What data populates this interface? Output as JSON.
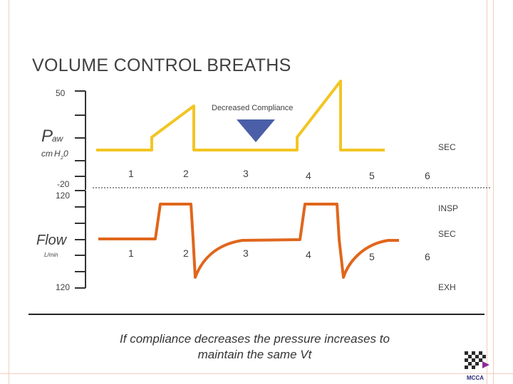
{
  "title": "VOLUME CONTROL BREATHS",
  "annotation": "Decreased Compliance",
  "pressure_panel": {
    "label_main": "P",
    "label_sub": "aw",
    "unit_prefix": "cm",
    "unit_sub": "H",
    "unit_2": "2",
    "unit_suffix": "0",
    "top_value": "50",
    "bottom_value": "-20",
    "sec_label": "SEC",
    "ticks": [
      "1",
      "2",
      "3",
      "4",
      "5",
      "6"
    ]
  },
  "flow_panel": {
    "label_main": "Flow",
    "unit": "L/min",
    "top_value": "120",
    "bottom_value": "120",
    "insp_label": "INSP",
    "sec_label": "SEC",
    "exh_label": "EXH",
    "ticks": [
      "1",
      "2",
      "3",
      "4",
      "5",
      "6"
    ]
  },
  "caption": {
    "line1": "If compliance decreases the pressure increases to",
    "line2": "maintain the same Vt"
  },
  "logo_text": "MCCA",
  "colors": {
    "pressure": "#f2c523",
    "flow": "#e0661c",
    "arrow": "#4a5fa8",
    "axis": "#333333",
    "text": "#404040"
  }
}
